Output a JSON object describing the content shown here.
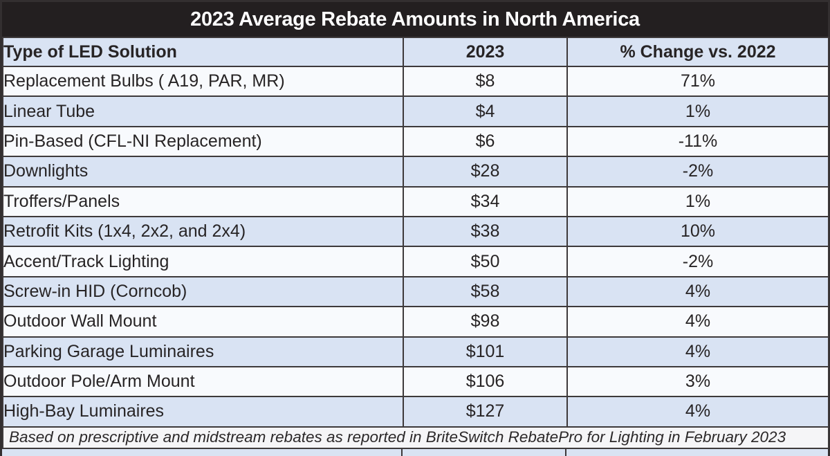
{
  "title_bar": {
    "title": "2023 Average Rebate Amounts in North America"
  },
  "table": {
    "columns": [
      "Type of LED Solution",
      "2023",
      "% Change vs. 2022"
    ],
    "rows": [
      {
        "solution": "Replacement Bulbs ( A19, PAR, MR)",
        "amount": "$8",
        "change": "71%"
      },
      {
        "solution": "Linear Tube",
        "amount": "$4",
        "change": "1%"
      },
      {
        "solution": "Pin-Based (CFL-NI Replacement)",
        "amount": "$6",
        "change": "-11%"
      },
      {
        "solution": "Downlights",
        "amount": "$28",
        "change": "-2%"
      },
      {
        "solution": "Troffers/Panels",
        "amount": "$34",
        "change": "1%"
      },
      {
        "solution": "Retrofit Kits (1x4, 2x2, and 2x4)",
        "amount": "$38",
        "change": "10%"
      },
      {
        "solution": "Accent/Track Lighting",
        "amount": "$50",
        "change": "-2%"
      },
      {
        "solution": "Screw-in HID (Corncob)",
        "amount": "$58",
        "change": "4%"
      },
      {
        "solution": "Outdoor Wall Mount",
        "amount": "$98",
        "change": "4%"
      },
      {
        "solution": "Parking Garage Luminaires",
        "amount": "$101",
        "change": "4%"
      },
      {
        "solution": "Outdoor Pole/Arm Mount",
        "amount": "$106",
        "change": "3%"
      },
      {
        "solution": "High-Bay Luminaires",
        "amount": "$127",
        "change": "4%"
      }
    ]
  },
  "footer": {
    "note": "Based on prescriptive and midstream rebates as reported in BriteSwitch RebatePro for Lighting in February 2023"
  },
  "colors": {
    "title_bar_bg": "#231f20",
    "title_text": "#ffffff",
    "header_row_bg": "#d9e3f3",
    "alt_row_bg": "#d9e3f3",
    "white_row_bg": "#f8fafd",
    "footer_bg": "#f5f5f7",
    "grid_line": "#3d393a",
    "body_text": "#272425"
  },
  "chart_data": {
    "type": "table",
    "title": "2023 Average Rebate Amounts in North America",
    "columns": [
      "Type of LED Solution",
      "2023",
      "% Change vs. 2022"
    ],
    "categories": [
      "Replacement Bulbs ( A19, PAR, MR)",
      "Linear Tube",
      "Pin-Based (CFL-NI Replacement)",
      "Downlights",
      "Troffers/Panels",
      "Retrofit Kits (1x4, 2x2, and 2x4)",
      "Accent/Track Lighting",
      "Screw-in HID (Corncob)",
      "Outdoor Wall Mount",
      "Parking Garage Luminaires",
      "Outdoor Pole/Arm Mount",
      "High-Bay Luminaires"
    ],
    "series": [
      {
        "name": "2023 average rebate (USD)",
        "values": [
          8,
          4,
          6,
          28,
          34,
          38,
          50,
          58,
          98,
          101,
          106,
          127
        ]
      },
      {
        "name": "% change vs. 2022",
        "values": [
          71,
          1,
          -11,
          -2,
          1,
          10,
          -2,
          4,
          4,
          4,
          3,
          4
        ]
      }
    ],
    "footnote": "Based on prescriptive and midstream rebates as reported in BriteSwitch RebatePro for Lighting in February 2023"
  }
}
